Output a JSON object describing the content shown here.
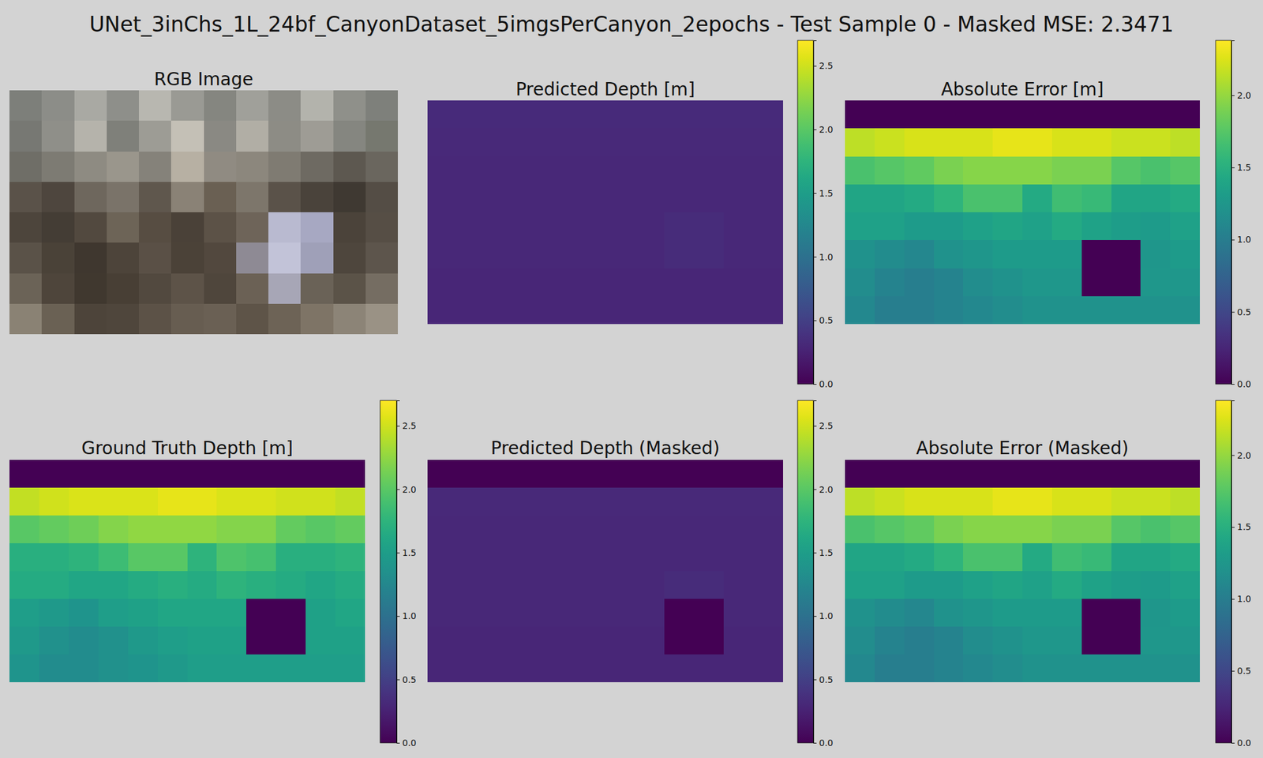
{
  "title": "UNet_3inChs_1L_24bf_CanyonDataset_5imgsPerCanyon_2epochs - Test Sample 0 - Masked MSE: 2.3471",
  "chart_data": [
    {
      "type": "image",
      "title": "RGB Image",
      "colors": [
        [
          "#7d7f7a",
          "#8c8d88",
          "#a9a9a3",
          "#8e8f8a",
          "#b8b7b0",
          "#9a9a94",
          "#858680",
          "#a0a09a",
          "#8c8c86",
          "#b3b3ac",
          "#8f908a",
          "#7e807b"
        ],
        [
          "#777873",
          "#8f8f89",
          "#b5b3ab",
          "#7f807a",
          "#9d9c95",
          "#c4c0b6",
          "#8a8983",
          "#b1aea5",
          "#8d8c85",
          "#9e9c95",
          "#858680",
          "#76786f"
        ],
        [
          "#6f6e67",
          "#7d7b73",
          "#8e8b82",
          "#9a968c",
          "#85827a",
          "#b7b0a3",
          "#908b82",
          "#8c877d",
          "#7f7b72",
          "#6e6a62",
          "#5d5850",
          "#6a665e"
        ],
        [
          "#5a5249",
          "#4e463e",
          "#6e675d",
          "#7a7369",
          "#5f574d",
          "#8a8276",
          "#6a6053",
          "#7d766b",
          "#5a5249",
          "#4a433b",
          "#3f3932",
          "#544d45"
        ],
        [
          "#4d453c",
          "#443d35",
          "#52493f",
          "#6d6457",
          "#574d42",
          "#4a4138",
          "#5c5247",
          "#6e6459",
          "#b9bad0",
          "#a7a8c2",
          "#4b433a",
          "#564e45"
        ],
        [
          "#5a5248",
          "#4a4238",
          "#3f372f",
          "#4d443a",
          "#5a5046",
          "#4b4238",
          "#52483e",
          "#8e8a94",
          "#c2c3d8",
          "#9fa0b8",
          "#4e463d",
          "#5d554c"
        ],
        [
          "#6b6357",
          "#4e453b",
          "#40382f",
          "#483f35",
          "#52493f",
          "#5d5348",
          "#4f463c",
          "#6b6155",
          "#a7a6b6",
          "#6a6257",
          "#5b5348",
          "#756d62"
        ],
        [
          "#8a8274",
          "#6a6154",
          "#4d443a",
          "#4f463c",
          "#5c5247",
          "#675d51",
          "#6a6054",
          "#5e5448",
          "#6d6356",
          "#7e7466",
          "#8c8477",
          "#9a9285"
        ]
      ]
    },
    {
      "type": "heatmap",
      "title": "Predicted Depth [m]",
      "cells": [
        [
          0.32,
          0.32,
          0.32,
          0.32,
          0.32,
          0.32,
          0.32,
          0.32,
          0.32,
          0.32,
          0.32,
          0.32
        ],
        [
          0.31,
          0.31,
          0.31,
          0.31,
          0.31,
          0.31,
          0.31,
          0.31,
          0.31,
          0.31,
          0.31,
          0.31
        ],
        [
          0.3,
          0.3,
          0.3,
          0.3,
          0.3,
          0.3,
          0.3,
          0.3,
          0.3,
          0.3,
          0.3,
          0.3
        ],
        [
          0.3,
          0.3,
          0.3,
          0.3,
          0.3,
          0.3,
          0.3,
          0.3,
          0.3,
          0.3,
          0.3,
          0.3
        ],
        [
          0.3,
          0.3,
          0.3,
          0.3,
          0.3,
          0.3,
          0.3,
          0.3,
          0.33,
          0.33,
          0.3,
          0.3
        ],
        [
          0.3,
          0.3,
          0.3,
          0.3,
          0.3,
          0.3,
          0.3,
          0.3,
          0.33,
          0.33,
          0.3,
          0.3
        ],
        [
          0.29,
          0.29,
          0.29,
          0.29,
          0.29,
          0.29,
          0.29,
          0.29,
          0.29,
          0.29,
          0.29,
          0.29
        ],
        [
          0.29,
          0.29,
          0.29,
          0.29,
          0.29,
          0.29,
          0.29,
          0.29,
          0.29,
          0.29,
          0.29,
          0.29
        ]
      ],
      "colorbar": {
        "range": [
          0,
          2.7
        ],
        "ticks": [
          {
            "value": 0,
            "label": "0.0"
          },
          0.5,
          {
            "value": 1,
            "label": "1.0"
          },
          1.5,
          {
            "value": 2,
            "label": "2.0"
          },
          2.5
        ]
      }
    },
    {
      "type": "heatmap",
      "title": "Absolute Error [m]",
      "cells": [
        [
          0,
          0,
          0,
          0,
          0,
          0,
          0,
          0,
          0,
          0,
          0,
          0
        ],
        [
          2.14,
          2.19,
          2.24,
          2.24,
          2.24,
          2.29,
          2.29,
          2.24,
          2.24,
          2.19,
          2.19,
          2.14
        ],
        [
          1.7,
          1.75,
          1.8,
          1.9,
          1.95,
          1.95,
          1.95,
          1.9,
          1.9,
          1.75,
          1.7,
          1.75
        ],
        [
          1.4,
          1.4,
          1.45,
          1.55,
          1.7,
          1.7,
          1.45,
          1.65,
          1.6,
          1.4,
          1.4,
          1.45
        ],
        [
          1.35,
          1.35,
          1.3,
          1.3,
          1.35,
          1.4,
          1.35,
          1.45,
          1.37,
          1.32,
          1.3,
          1.35
        ],
        [
          1.2,
          1.15,
          1.1,
          1.2,
          1.25,
          1.3,
          1.3,
          1.3,
          0,
          0,
          1.25,
          1.3
        ],
        [
          1.16,
          1.06,
          1.01,
          1.06,
          1.16,
          1.21,
          1.26,
          1.26,
          0,
          0,
          1.26,
          1.26
        ],
        [
          1.11,
          1.01,
          1.01,
          1.06,
          1.11,
          1.16,
          1.21,
          1.21,
          1.21,
          1.21,
          1.21,
          1.21
        ]
      ],
      "colorbar": {
        "range": [
          0,
          2.38
        ],
        "ticks": [
          {
            "value": 0,
            "label": "0.0"
          },
          0.5,
          {
            "value": 1,
            "label": "1.0"
          },
          1.5,
          {
            "value": 2,
            "label": "2.0"
          }
        ]
      }
    },
    {
      "type": "heatmap",
      "title": "Ground Truth Depth [m]",
      "cells": [
        [
          0,
          0,
          0,
          0,
          0,
          0,
          0,
          0,
          0,
          0,
          0,
          0
        ],
        [
          2.45,
          2.5,
          2.55,
          2.55,
          2.55,
          2.6,
          2.6,
          2.55,
          2.55,
          2.5,
          2.5,
          2.45
        ],
        [
          2.0,
          2.05,
          2.1,
          2.2,
          2.25,
          2.25,
          2.25,
          2.2,
          2.2,
          2.05,
          2.0,
          2.05
        ],
        [
          1.7,
          1.7,
          1.75,
          1.85,
          2.0,
          2.0,
          1.75,
          1.95,
          1.9,
          1.7,
          1.7,
          1.75
        ],
        [
          1.65,
          1.65,
          1.6,
          1.6,
          1.65,
          1.7,
          1.65,
          1.75,
          1.7,
          1.65,
          1.6,
          1.65
        ],
        [
          1.5,
          1.45,
          1.4,
          1.5,
          1.55,
          1.6,
          1.6,
          1.6,
          0,
          0,
          1.55,
          1.6
        ],
        [
          1.45,
          1.35,
          1.3,
          1.35,
          1.45,
          1.5,
          1.55,
          1.55,
          0,
          0,
          1.55,
          1.55
        ],
        [
          1.4,
          1.3,
          1.3,
          1.35,
          1.4,
          1.45,
          1.5,
          1.5,
          1.5,
          1.5,
          1.5,
          1.5
        ]
      ],
      "colorbar": {
        "range": [
          0,
          2.7
        ],
        "ticks": [
          {
            "value": 0,
            "label": "0.0"
          },
          0.5,
          {
            "value": 1,
            "label": "1.0"
          },
          1.5,
          {
            "value": 2,
            "label": "2.0"
          },
          2.5
        ]
      }
    },
    {
      "type": "heatmap",
      "title": "Predicted Depth (Masked)",
      "cells": [
        [
          0,
          0,
          0,
          0,
          0,
          0,
          0,
          0,
          0,
          0,
          0,
          0
        ],
        [
          0.31,
          0.31,
          0.31,
          0.31,
          0.31,
          0.31,
          0.31,
          0.31,
          0.31,
          0.31,
          0.31,
          0.31
        ],
        [
          0.3,
          0.3,
          0.3,
          0.3,
          0.3,
          0.3,
          0.3,
          0.3,
          0.3,
          0.3,
          0.3,
          0.3
        ],
        [
          0.3,
          0.3,
          0.3,
          0.3,
          0.3,
          0.3,
          0.3,
          0.3,
          0.3,
          0.3,
          0.3,
          0.3
        ],
        [
          0.3,
          0.3,
          0.3,
          0.3,
          0.3,
          0.3,
          0.3,
          0.3,
          0.33,
          0.33,
          0.3,
          0.3
        ],
        [
          0.3,
          0.3,
          0.3,
          0.3,
          0.3,
          0.3,
          0.3,
          0.3,
          0,
          0,
          0.3,
          0.3
        ],
        [
          0.29,
          0.29,
          0.29,
          0.29,
          0.29,
          0.29,
          0.29,
          0.29,
          0,
          0,
          0.29,
          0.29
        ],
        [
          0.29,
          0.29,
          0.29,
          0.29,
          0.29,
          0.29,
          0.29,
          0.29,
          0.29,
          0.29,
          0.29,
          0.29
        ]
      ],
      "colorbar": {
        "range": [
          0,
          2.7
        ],
        "ticks": [
          {
            "value": 0,
            "label": "0.0"
          },
          0.5,
          {
            "value": 1,
            "label": "1.0"
          },
          1.5,
          {
            "value": 2,
            "label": "2.0"
          },
          2.5
        ]
      }
    },
    {
      "type": "heatmap",
      "title": "Absolute Error (Masked)",
      "cells": [
        [
          0,
          0,
          0,
          0,
          0,
          0,
          0,
          0,
          0,
          0,
          0,
          0
        ],
        [
          2.14,
          2.19,
          2.24,
          2.24,
          2.24,
          2.29,
          2.29,
          2.24,
          2.24,
          2.19,
          2.19,
          2.14
        ],
        [
          1.7,
          1.75,
          1.8,
          1.9,
          1.95,
          1.95,
          1.95,
          1.9,
          1.9,
          1.75,
          1.7,
          1.75
        ],
        [
          1.4,
          1.4,
          1.45,
          1.55,
          1.7,
          1.7,
          1.45,
          1.65,
          1.6,
          1.4,
          1.4,
          1.45
        ],
        [
          1.35,
          1.35,
          1.3,
          1.3,
          1.35,
          1.4,
          1.35,
          1.45,
          1.37,
          1.32,
          1.3,
          1.35
        ],
        [
          1.2,
          1.15,
          1.1,
          1.2,
          1.25,
          1.3,
          1.3,
          1.3,
          0,
          0,
          1.25,
          1.3
        ],
        [
          1.16,
          1.06,
          1.01,
          1.06,
          1.16,
          1.21,
          1.26,
          1.26,
          0,
          0,
          1.26,
          1.26
        ],
        [
          1.11,
          1.01,
          1.01,
          1.06,
          1.11,
          1.16,
          1.21,
          1.21,
          1.21,
          1.21,
          1.21,
          1.21
        ]
      ],
      "colorbar": {
        "range": [
          0,
          2.38
        ],
        "ticks": [
          {
            "value": 0,
            "label": "0.0"
          },
          0.5,
          {
            "value": 1,
            "label": "1.0"
          },
          1.5,
          {
            "value": 2,
            "label": "2.0"
          }
        ]
      }
    }
  ]
}
